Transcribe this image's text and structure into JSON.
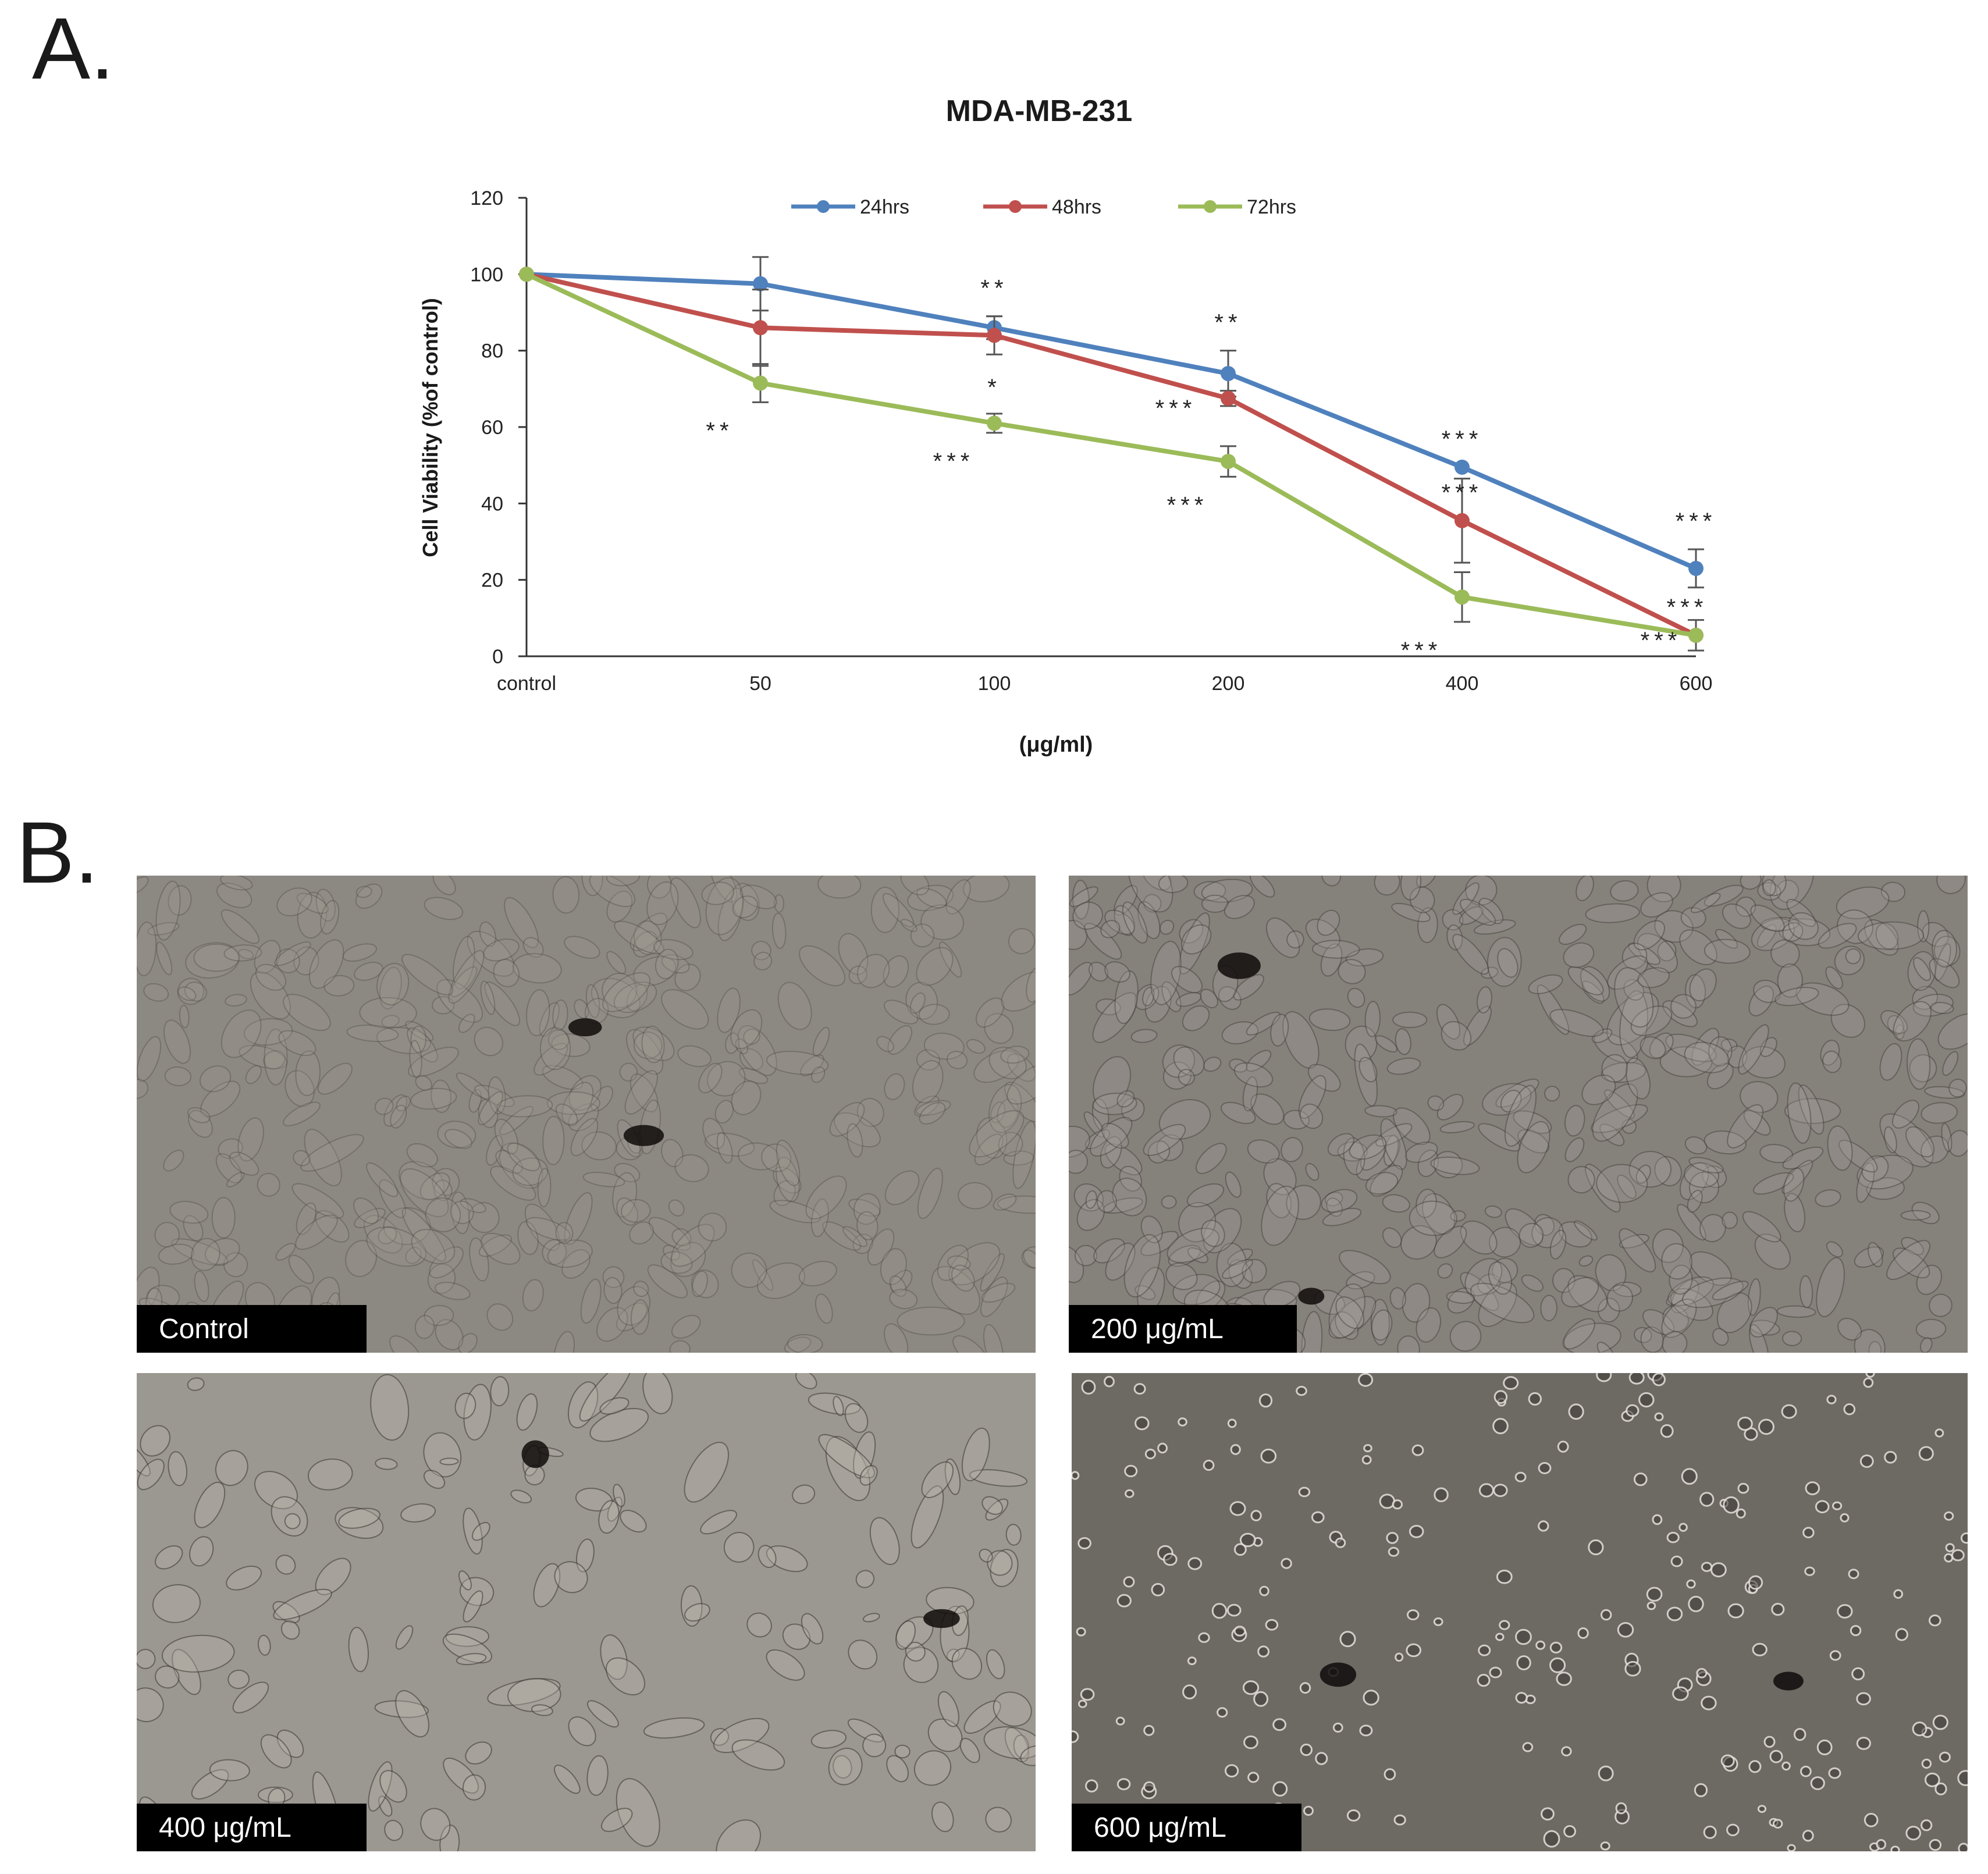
{
  "panel_a_label": "A.",
  "panel_b_label": "B.",
  "chart_data": {
    "type": "line",
    "title": "MDA-MB-231",
    "xlabel": "(μg/ml)",
    "ylabel": "Cell Viability (%of control)",
    "categories": [
      "control",
      "50",
      "100",
      "200",
      "400",
      "600"
    ],
    "ylim": [
      0,
      120
    ],
    "yticks": [
      0,
      20,
      40,
      60,
      80,
      100,
      120
    ],
    "grid": false,
    "legend_position": "top",
    "series": [
      {
        "name": "24hrs",
        "color": "#4f81bd",
        "values": [
          100,
          97.5,
          86,
          74,
          49.5,
          23
        ],
        "errors": [
          0,
          7,
          3,
          6,
          0,
          5
        ],
        "significance": [
          "",
          "",
          "**",
          "**",
          "***",
          "***"
        ]
      },
      {
        "name": "48hrs",
        "color": "#c0504d",
        "values": [
          100,
          86,
          84,
          67.5,
          35.5,
          5.5
        ],
        "errors": [
          0,
          10,
          5,
          2,
          11,
          0
        ],
        "significance": [
          "",
          "",
          "*",
          "***",
          "***",
          "***"
        ]
      },
      {
        "name": "72hrs",
        "color": "#9bbb59",
        "values": [
          100,
          71.5,
          61,
          51,
          15.5,
          5.5
        ],
        "errors": [
          0,
          5,
          2.5,
          4,
          6.5,
          4
        ],
        "significance": [
          "",
          "**",
          "***",
          "***",
          "***",
          "***"
        ]
      }
    ]
  },
  "micrographs": [
    {
      "label": "Control"
    },
    {
      "label": "200 μg/mL"
    },
    {
      "label": "400 μg/mL"
    },
    {
      "label": "600 μg/mL"
    }
  ]
}
